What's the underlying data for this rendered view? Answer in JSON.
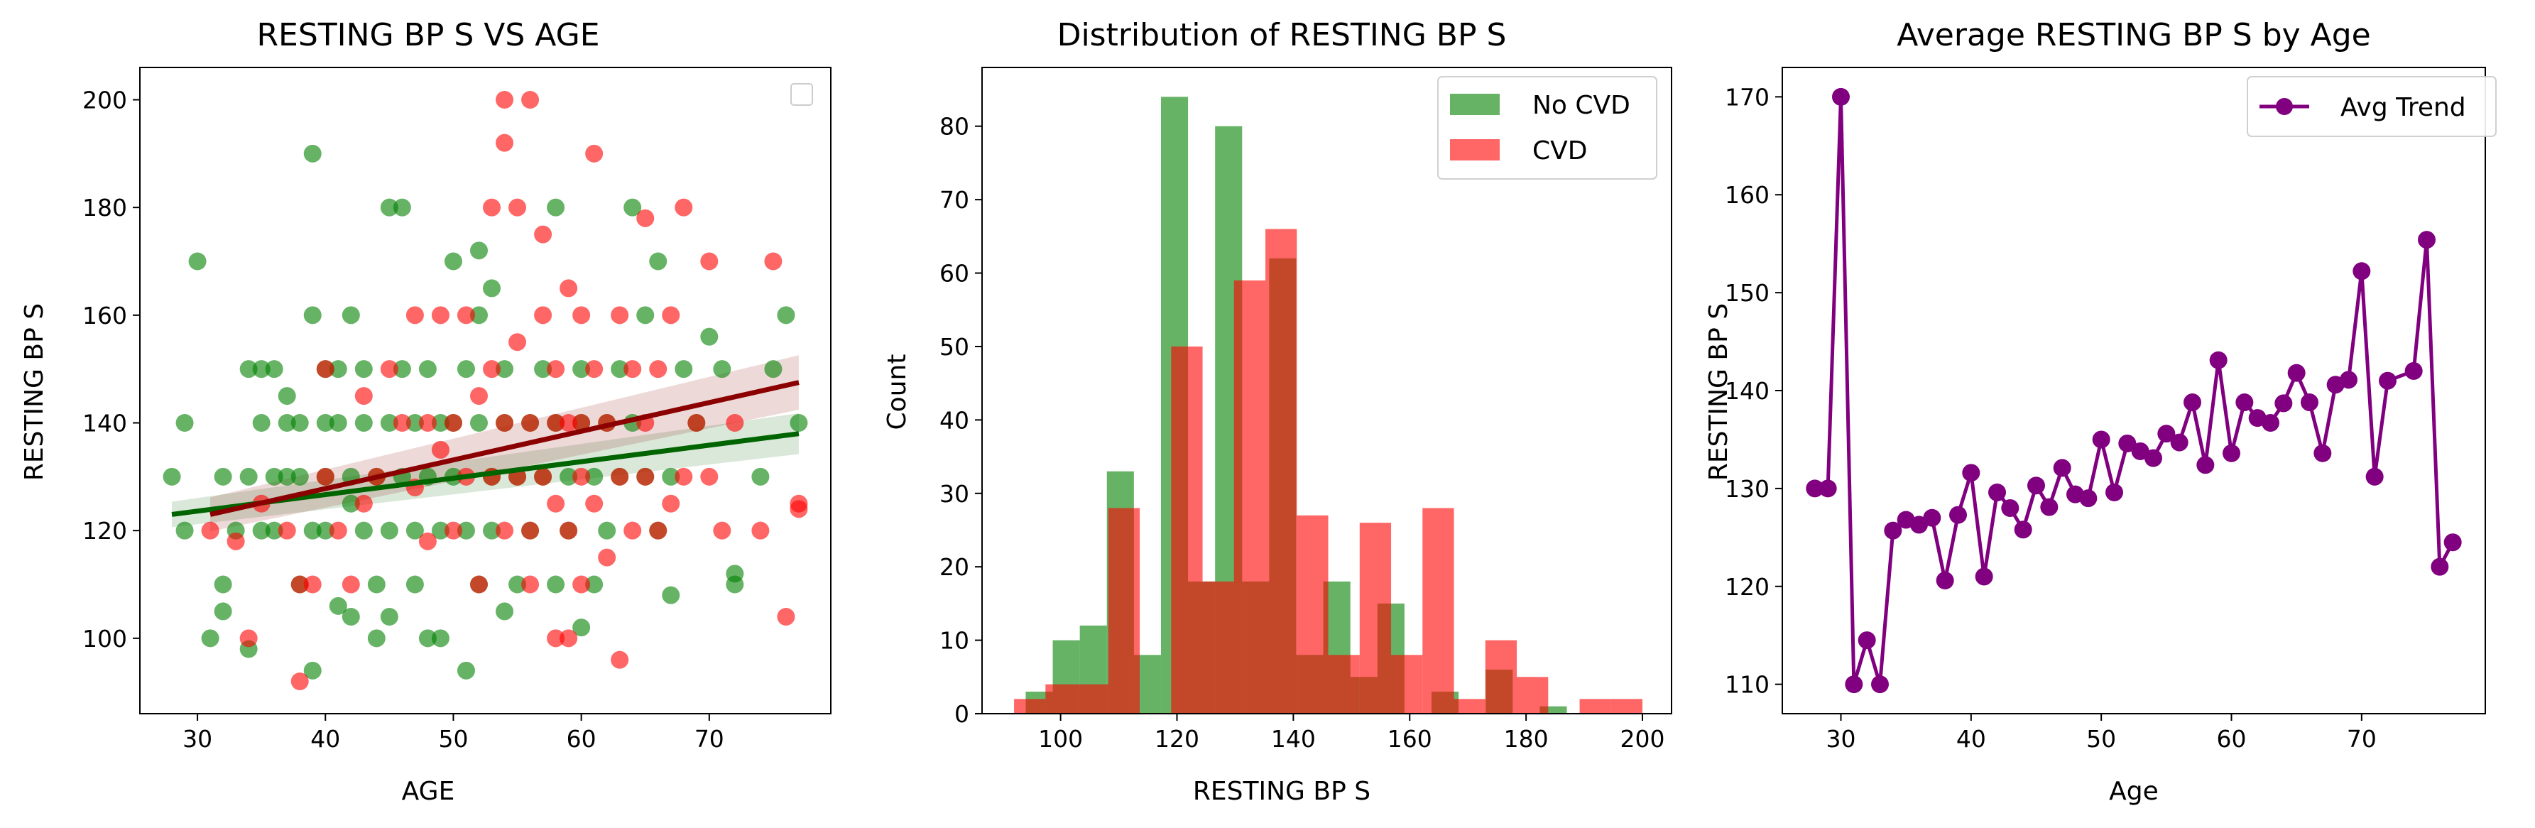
{
  "chart_data": [
    {
      "type": "scatter",
      "title": "RESTING BP S VS AGE",
      "xlabel": "AGE",
      "ylabel": "RESTING BP S",
      "xlim": [
        25.5,
        79.5
      ],
      "ylim": [
        86,
        206
      ],
      "xticks": [
        30,
        40,
        50,
        60,
        70
      ],
      "yticks": [
        100,
        120,
        140,
        160,
        180,
        200
      ],
      "legend": "top-right, empty",
      "colors": {
        "no_cvd": "#008000",
        "cvd": "#ff0000",
        "no_cvd_line": "#006400",
        "cvd_line": "#8b0000"
      },
      "series": [
        {
          "points": [
            [
              28,
              130
            ],
            [
              29,
              140
            ],
            [
              29,
              120
            ],
            [
              30,
              170
            ],
            [
              31,
              100
            ],
            [
              32,
              130
            ],
            [
              32,
              105
            ],
            [
              32,
              110
            ],
            [
              33,
              120
            ],
            [
              34,
              98
            ],
            [
              34,
              130
            ],
            [
              34,
              150
            ],
            [
              35,
              150
            ],
            [
              35,
              120
            ],
            [
              35,
              140
            ],
            [
              36,
              150
            ],
            [
              36,
              130
            ],
            [
              36,
              120
            ],
            [
              37,
              130
            ],
            [
              37,
              140
            ],
            [
              37,
              145
            ],
            [
              38,
              140
            ],
            [
              38,
              130
            ],
            [
              38,
              110
            ],
            [
              39,
              190
            ],
            [
              39,
              120
            ],
            [
              39,
              160
            ],
            [
              39,
              94
            ],
            [
              40,
              140
            ],
            [
              40,
              130
            ],
            [
              40,
              120
            ],
            [
              40,
              150
            ],
            [
              41,
              106
            ],
            [
              41,
              150
            ],
            [
              41,
              140
            ],
            [
              42,
              130
            ],
            [
              42,
              125
            ],
            [
              42,
              160
            ],
            [
              42,
              104
            ],
            [
              43,
              120
            ],
            [
              43,
              140
            ],
            [
              43,
              150
            ],
            [
              44,
              130
            ],
            [
              44,
              110
            ],
            [
              44,
              100
            ],
            [
              45,
              180
            ],
            [
              45,
              140
            ],
            [
              45,
              120
            ],
            [
              45,
              104
            ],
            [
              46,
              180
            ],
            [
              46,
              150
            ],
            [
              46,
              130
            ],
            [
              47,
              110
            ],
            [
              47,
              140
            ],
            [
              47,
              120
            ],
            [
              48,
              130
            ],
            [
              48,
              150
            ],
            [
              48,
              100
            ],
            [
              49,
              140
            ],
            [
              49,
              120
            ],
            [
              49,
              100
            ],
            [
              50,
              170
            ],
            [
              50,
              140
            ],
            [
              50,
              130
            ],
            [
              51,
              150
            ],
            [
              51,
              120
            ],
            [
              51,
              94
            ],
            [
              52,
              172
            ],
            [
              52,
              160
            ],
            [
              52,
              140
            ],
            [
              52,
              110
            ],
            [
              53,
              130
            ],
            [
              53,
              165
            ],
            [
              53,
              120
            ],
            [
              54,
              140
            ],
            [
              54,
              150
            ],
            [
              54,
              105
            ],
            [
              55,
              130
            ],
            [
              55,
              110
            ],
            [
              56,
              140
            ],
            [
              56,
              120
            ],
            [
              57,
              150
            ],
            [
              57,
              130
            ],
            [
              58,
              180
            ],
            [
              58,
              140
            ],
            [
              58,
              110
            ],
            [
              59,
              130
            ],
            [
              59,
              120
            ],
            [
              60,
              150
            ],
            [
              60,
              140
            ],
            [
              60,
              102
            ],
            [
              61,
              130
            ],
            [
              61,
              110
            ],
            [
              62,
              140
            ],
            [
              62,
              120
            ],
            [
              63,
              130
            ],
            [
              63,
              150
            ],
            [
              64,
              180
            ],
            [
              64,
              140
            ],
            [
              65,
              160
            ],
            [
              65,
              130
            ],
            [
              66,
              170
            ],
            [
              66,
              120
            ],
            [
              67,
              108
            ],
            [
              67,
              130
            ],
            [
              68,
              150
            ],
            [
              69,
              140
            ],
            [
              70,
              156
            ],
            [
              71,
              150
            ],
            [
              72,
              110
            ],
            [
              72,
              112
            ],
            [
              74,
              130
            ],
            [
              75,
              150
            ],
            [
              76,
              160
            ],
            [
              77,
              140
            ]
          ]
        },
        {
          "points": [
            [
              31,
              120
            ],
            [
              33,
              118
            ],
            [
              34,
              100
            ],
            [
              35,
              125
            ],
            [
              37,
              120
            ],
            [
              38,
              92
            ],
            [
              38,
              110
            ],
            [
              39,
              110
            ],
            [
              40,
              150
            ],
            [
              40,
              130
            ],
            [
              41,
              120
            ],
            [
              42,
              110
            ],
            [
              43,
              145
            ],
            [
              43,
              125
            ],
            [
              44,
              130
            ],
            [
              45,
              150
            ],
            [
              46,
              140
            ],
            [
              47,
              160
            ],
            [
              47,
              128
            ],
            [
              48,
              118
            ],
            [
              48,
              140
            ],
            [
              49,
              160
            ],
            [
              49,
              135
            ],
            [
              50,
              120
            ],
            [
              50,
              140
            ],
            [
              51,
              160
            ],
            [
              51,
              130
            ],
            [
              52,
              110
            ],
            [
              52,
              145
            ],
            [
              53,
              180
            ],
            [
              53,
              130
            ],
            [
              53,
              150
            ],
            [
              54,
              200
            ],
            [
              54,
              192
            ],
            [
              54,
              140
            ],
            [
              54,
              120
            ],
            [
              55,
              180
            ],
            [
              55,
              130
            ],
            [
              55,
              155
            ],
            [
              56,
              200
            ],
            [
              56,
              140
            ],
            [
              56,
              120
            ],
            [
              56,
              110
            ],
            [
              57,
              160
            ],
            [
              57,
              130
            ],
            [
              57,
              175
            ],
            [
              58,
              150
            ],
            [
              58,
              140
            ],
            [
              58,
              125
            ],
            [
              58,
              100
            ],
            [
              59,
              165
            ],
            [
              59,
              140
            ],
            [
              59,
              120
            ],
            [
              59,
              100
            ],
            [
              60,
              160
            ],
            [
              60,
              140
            ],
            [
              60,
              130
            ],
            [
              60,
              110
            ],
            [
              61,
              190
            ],
            [
              61,
              150
            ],
            [
              61,
              125
            ],
            [
              62,
              140
            ],
            [
              62,
              115
            ],
            [
              63,
              160
            ],
            [
              63,
              130
            ],
            [
              63,
              96
            ],
            [
              64,
              150
            ],
            [
              64,
              120
            ],
            [
              65,
              178
            ],
            [
              65,
              140
            ],
            [
              65,
              130
            ],
            [
              66,
              150
            ],
            [
              66,
              120
            ],
            [
              67,
              160
            ],
            [
              67,
              125
            ],
            [
              68,
              180
            ],
            [
              68,
              130
            ],
            [
              69,
              140
            ],
            [
              70,
              170
            ],
            [
              70,
              130
            ],
            [
              71,
              120
            ],
            [
              72,
              140
            ],
            [
              74,
              120
            ],
            [
              75,
              170
            ],
            [
              76,
              104
            ],
            [
              77,
              125
            ],
            [
              77,
              124
            ]
          ]
        }
      ],
      "regression": [
        {
          "x": [
            28,
            77
          ],
          "y": [
            123,
            138
          ]
        },
        {
          "x": [
            31,
            77
          ],
          "y": [
            123,
            147.5
          ]
        }
      ]
    },
    {
      "type": "bar",
      "title": "Distribution of RESTING BP S",
      "xlabel": "RESTING BP S",
      "ylabel": "Count",
      "xlim": [
        86.5,
        205
      ],
      "ylim": [
        0,
        88
      ],
      "xticks": [
        100,
        120,
        140,
        160,
        180,
        200
      ],
      "yticks": [
        0,
        10,
        20,
        30,
        40,
        50,
        60,
        70,
        80
      ],
      "legend": "top-right",
      "series": [
        {
          "name": "No CVD",
          "color": "#008000",
          "opacity": 0.6,
          "bin_edges": [
            94,
            98.65,
            103.3,
            107.95,
            112.6,
            117.25,
            121.9,
            126.55,
            131.2,
            135.85,
            140.5,
            145.15,
            149.8,
            154.45,
            159.1,
            163.75,
            168.4,
            173.05,
            177.7,
            182.35,
            187
          ],
          "counts": [
            3,
            10,
            12,
            33,
            8,
            84,
            18,
            80,
            18,
            62,
            8,
            18,
            5,
            15,
            0,
            3,
            0,
            6,
            0,
            1
          ]
        },
        {
          "name": "CVD",
          "color": "#ff0000",
          "opacity": 0.6,
          "bin_edges": [
            92,
            97.4,
            102.8,
            108.2,
            113.6,
            119,
            124.4,
            129.8,
            135.2,
            140.6,
            146,
            151.4,
            156.8,
            162.2,
            167.6,
            173,
            178.4,
            183.8,
            189.2,
            194.6,
            200
          ],
          "counts": [
            2,
            4,
            4,
            28,
            0,
            50,
            18,
            59,
            66,
            27,
            8,
            26,
            8,
            28,
            2,
            10,
            5,
            0,
            2,
            2
          ]
        }
      ]
    },
    {
      "type": "line",
      "title": "Average RESTING BP S by Age",
      "xlabel": "Age",
      "ylabel": "RESTING BP S",
      "xlim": [
        25.5,
        79.5
      ],
      "ylim": [
        107,
        173
      ],
      "xticks": [
        30,
        40,
        50,
        60,
        70
      ],
      "yticks": [
        110,
        120,
        130,
        140,
        150,
        160,
        170
      ],
      "legend": "top-right",
      "series": [
        {
          "name": "Avg Trend",
          "color": "#800080",
          "x": [
            28,
            29,
            30,
            31,
            32,
            33,
            34,
            35,
            36,
            37,
            38,
            39,
            40,
            41,
            42,
            43,
            44,
            45,
            46,
            47,
            48,
            49,
            50,
            51,
            52,
            53,
            54,
            55,
            56,
            57,
            58,
            59,
            60,
            61,
            62,
            63,
            64,
            65,
            66,
            67,
            68,
            69,
            70,
            71,
            72,
            74,
            75,
            76,
            77
          ],
          "y": [
            130,
            130,
            170,
            110,
            114.5,
            110,
            125.7,
            126.8,
            126.3,
            127,
            120.6,
            127.3,
            131.6,
            121,
            129.6,
            128,
            125.8,
            130.3,
            128.1,
            132.1,
            129.4,
            129,
            135,
            129.6,
            134.6,
            133.8,
            133.1,
            135.6,
            134.7,
            138.8,
            132.4,
            143.1,
            133.6,
            138.8,
            137.2,
            136.7,
            138.7,
            141.8,
            138.8,
            133.6,
            140.6,
            141.1,
            152.2,
            131.2,
            141,
            142,
            155.4,
            122,
            124.5
          ]
        }
      ]
    }
  ]
}
